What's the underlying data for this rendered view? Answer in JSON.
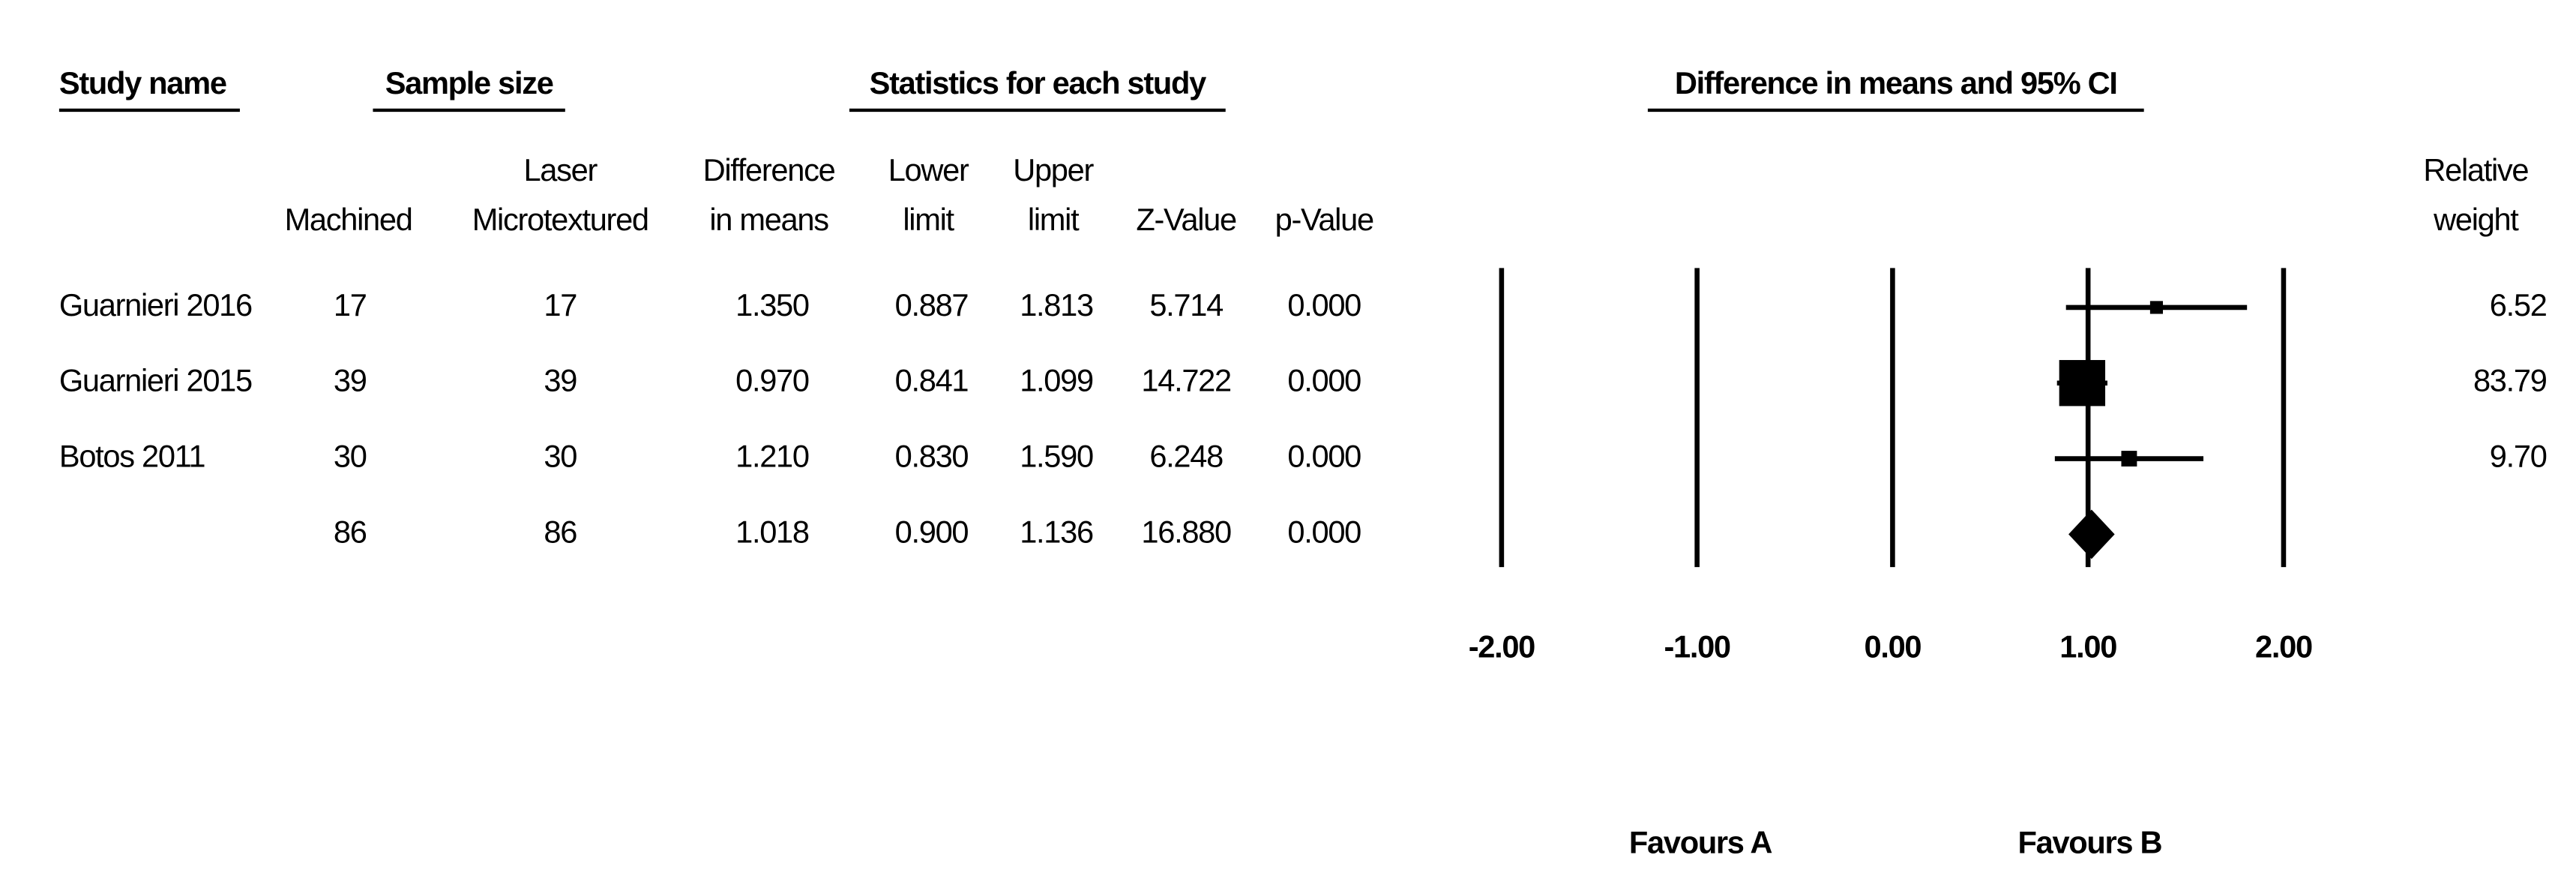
{
  "chart_data": {
    "type": "forest",
    "group_headers": [
      "Study name",
      "Sample size",
      "Statistics for each study",
      "Difference in means and 95%  CI"
    ],
    "column_headers": [
      [
        "Machined"
      ],
      [
        "Laser",
        "Microtextured"
      ],
      [
        "Difference",
        "in means"
      ],
      [
        "Lower",
        "limit"
      ],
      [
        "Upper",
        "limit"
      ],
      [
        "Z-Value"
      ],
      [
        "p-Value"
      ],
      [
        "Relative",
        "weight"
      ]
    ],
    "studies": [
      "Guarnieri 2016",
      "Guarnieri 2015",
      "Botos 2011",
      null
    ],
    "machined": [
      17,
      39,
      30,
      86
    ],
    "laser": [
      17,
      39,
      30,
      86
    ],
    "values": [
      1.35,
      0.97,
      1.21,
      1.018
    ],
    "value_labels": [
      "1.350",
      "0.970",
      "1.210",
      "1.018"
    ],
    "lower": [
      0.887,
      0.841,
      0.83,
      0.9
    ],
    "lower_labels": [
      "0.887",
      "0.841",
      "0.830",
      "0.900"
    ],
    "upper": [
      1.813,
      1.099,
      1.59,
      1.136
    ],
    "upper_labels": [
      "1.813",
      "1.099",
      "1.590",
      "1.136"
    ],
    "z": [
      5.714,
      14.722,
      6.248,
      16.88
    ],
    "z_labels": [
      "5.714",
      "14.722",
      "6.248",
      "16.880"
    ],
    "p": [
      0,
      0,
      0,
      0
    ],
    "p_labels": [
      "0.000",
      "0.000",
      "0.000",
      "0.000"
    ],
    "weights": [
      6.52,
      83.79,
      9.7,
      null
    ],
    "weight_labels": [
      "6.52",
      "83.79",
      "9.70",
      null
    ],
    "xlim": [
      -2,
      2
    ],
    "xticks": [
      {
        "value": -2,
        "label": "-2.00"
      },
      {
        "value": -1,
        "label": "-1.00"
      },
      {
        "value": 0,
        "label": "0.00"
      },
      {
        "value": 1,
        "label": "1.00"
      },
      {
        "value": 2,
        "label": "2.00"
      }
    ],
    "grid": true,
    "favours": [
      "Favours A",
      "Favours B"
    ],
    "color": "#000000"
  }
}
